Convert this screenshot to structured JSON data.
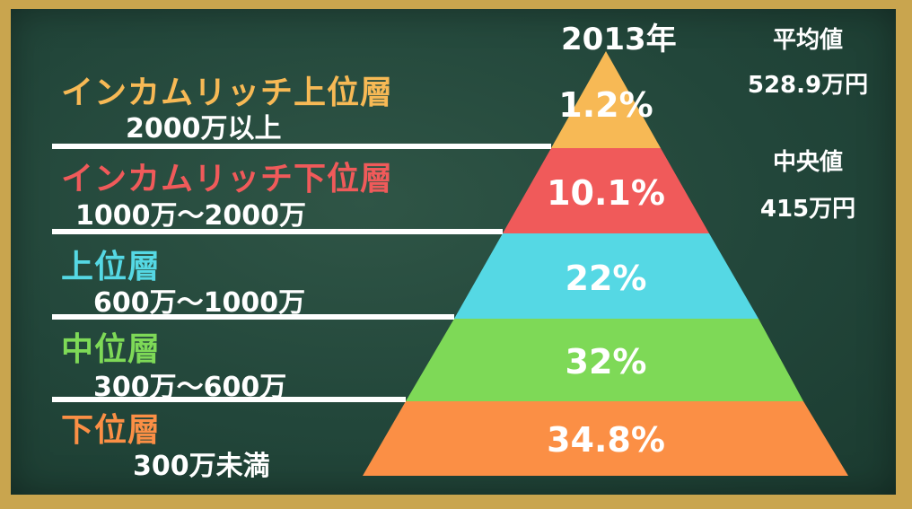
{
  "year": "2013年",
  "stats": {
    "mean_label": "平均値",
    "mean_value": "528.9万円",
    "median_label": "中央値",
    "median_value": "415万円"
  },
  "tiers": [
    {
      "name": "インカムリッチ上位層",
      "range": "2000万以上",
      "percent": "1.2%",
      "color": "#f7b955"
    },
    {
      "name": "インカムリッチ下位層",
      "range": "1000万～2000万",
      "percent": "10.1%",
      "color": "#f05a5a"
    },
    {
      "name": "上位層",
      "range": "600万～1000万",
      "percent": "22%",
      "color": "#55d8e4"
    },
    {
      "name": "中位層",
      "range": "300万～600万",
      "percent": "32%",
      "color": "#7ed957"
    },
    {
      "name": "下位層",
      "range": "300万未満",
      "percent": "34.8%",
      "color": "#fb8f45"
    }
  ]
}
